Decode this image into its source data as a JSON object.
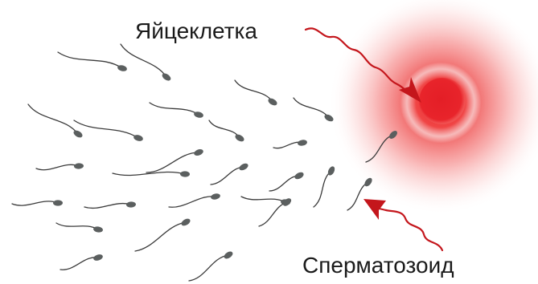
{
  "labels": {
    "egg": "Яйцеклетка",
    "sperm": "Сперматозоид"
  },
  "colors": {
    "egg_core": "#e8242b",
    "egg_glow": "#f05a5a",
    "sperm_head": "#5b5f5f",
    "sperm_tail": "#3a3a3a",
    "arrow": "#c4161c",
    "text": "#1a1a1a"
  }
}
